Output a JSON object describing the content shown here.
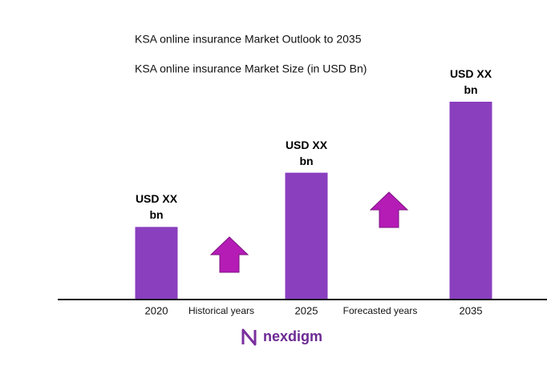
{
  "chart_data": {
    "type": "bar",
    "title": "KSA online insurance Market Outlook to 2035",
    "subtitle": "KSA online insurance Market Size (in USD Bn)",
    "categories": [
      "2020",
      "2025",
      "2035"
    ],
    "values": [
      90,
      158,
      247
    ],
    "value_labels": [
      "USD XX bn",
      "USD XX bn",
      "USD XX bn"
    ],
    "color": "#8a3fbf",
    "annotations": [
      "Historical years",
      "Forecasted years"
    ],
    "logo": "nexdigm"
  }
}
